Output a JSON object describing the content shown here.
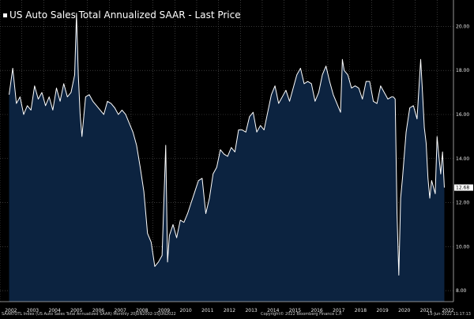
{
  "chart_data": {
    "type": "area",
    "title": "US Auto Sales Total Annualized SAAR - Last Price",
    "series": [
      {
        "name": "US Auto Sales Total Annualized SAAR - Last Price",
        "points": [
          [
            "2002-06",
            16.9
          ],
          [
            "2002-08",
            18.1
          ],
          [
            "2002-10",
            16.5
          ],
          [
            "2002-12",
            16.8
          ],
          [
            "2003-02",
            16.0
          ],
          [
            "2003-04",
            16.4
          ],
          [
            "2003-06",
            16.2
          ],
          [
            "2003-08",
            17.3
          ],
          [
            "2003-10",
            16.7
          ],
          [
            "2003-12",
            17.0
          ],
          [
            "2004-02",
            16.4
          ],
          [
            "2004-04",
            16.8
          ],
          [
            "2004-06",
            16.2
          ],
          [
            "2004-08",
            17.2
          ],
          [
            "2004-10",
            16.6
          ],
          [
            "2004-12",
            17.4
          ],
          [
            "2005-02",
            16.8
          ],
          [
            "2005-04",
            17.0
          ],
          [
            "2005-06",
            17.8
          ],
          [
            "2005-07",
            20.6
          ],
          [
            "2005-08",
            17.8
          ],
          [
            "2005-09",
            16.0
          ],
          [
            "2005-10",
            15.0
          ],
          [
            "2005-12",
            16.8
          ],
          [
            "2006-02",
            16.9
          ],
          [
            "2006-04",
            16.6
          ],
          [
            "2006-06",
            16.4
          ],
          [
            "2006-08",
            16.2
          ],
          [
            "2006-10",
            16.0
          ],
          [
            "2006-12",
            16.6
          ],
          [
            "2007-02",
            16.5
          ],
          [
            "2007-04",
            16.3
          ],
          [
            "2007-06",
            16.0
          ],
          [
            "2007-08",
            16.2
          ],
          [
            "2007-10",
            16.0
          ],
          [
            "2007-12",
            15.6
          ],
          [
            "2008-02",
            15.2
          ],
          [
            "2008-04",
            14.6
          ],
          [
            "2008-06",
            13.6
          ],
          [
            "2008-08",
            12.5
          ],
          [
            "2008-10",
            10.6
          ],
          [
            "2008-12",
            10.2
          ],
          [
            "2009-02",
            9.1
          ],
          [
            "2009-04",
            9.3
          ],
          [
            "2009-06",
            9.6
          ],
          [
            "2009-08",
            14.6
          ],
          [
            "2009-09",
            9.3
          ],
          [
            "2009-10",
            10.5
          ],
          [
            "2009-12",
            11.0
          ],
          [
            "2010-02",
            10.4
          ],
          [
            "2010-04",
            11.2
          ],
          [
            "2010-06",
            11.1
          ],
          [
            "2010-08",
            11.5
          ],
          [
            "2010-10",
            12.0
          ],
          [
            "2010-12",
            12.5
          ],
          [
            "2011-02",
            13.0
          ],
          [
            "2011-04",
            13.1
          ],
          [
            "2011-06",
            11.5
          ],
          [
            "2011-08",
            12.2
          ],
          [
            "2011-10",
            13.3
          ],
          [
            "2011-12",
            13.6
          ],
          [
            "2012-02",
            14.4
          ],
          [
            "2012-04",
            14.2
          ],
          [
            "2012-06",
            14.1
          ],
          [
            "2012-08",
            14.5
          ],
          [
            "2012-10",
            14.3
          ],
          [
            "2012-12",
            15.3
          ],
          [
            "2013-02",
            15.3
          ],
          [
            "2013-04",
            15.2
          ],
          [
            "2013-06",
            15.9
          ],
          [
            "2013-08",
            16.1
          ],
          [
            "2013-10",
            15.2
          ],
          [
            "2013-12",
            15.5
          ],
          [
            "2014-02",
            15.3
          ],
          [
            "2014-04",
            16.1
          ],
          [
            "2014-06",
            16.9
          ],
          [
            "2014-08",
            17.3
          ],
          [
            "2014-10",
            16.5
          ],
          [
            "2014-12",
            16.8
          ],
          [
            "2015-02",
            17.1
          ],
          [
            "2015-04",
            16.6
          ],
          [
            "2015-06",
            17.2
          ],
          [
            "2015-08",
            17.8
          ],
          [
            "2015-10",
            18.1
          ],
          [
            "2015-12",
            17.4
          ],
          [
            "2016-02",
            17.5
          ],
          [
            "2016-04",
            17.4
          ],
          [
            "2016-06",
            16.6
          ],
          [
            "2016-08",
            17.0
          ],
          [
            "2016-10",
            17.8
          ],
          [
            "2016-12",
            18.2
          ],
          [
            "2017-02",
            17.5
          ],
          [
            "2017-04",
            16.9
          ],
          [
            "2017-06",
            16.5
          ],
          [
            "2017-08",
            16.1
          ],
          [
            "2017-09",
            18.5
          ],
          [
            "2017-10",
            18.0
          ],
          [
            "2017-12",
            17.8
          ],
          [
            "2018-02",
            17.2
          ],
          [
            "2018-04",
            17.3
          ],
          [
            "2018-06",
            17.2
          ],
          [
            "2018-08",
            16.7
          ],
          [
            "2018-10",
            17.5
          ],
          [
            "2018-12",
            17.5
          ],
          [
            "2019-02",
            16.6
          ],
          [
            "2019-04",
            16.5
          ],
          [
            "2019-06",
            17.3
          ],
          [
            "2019-08",
            17.0
          ],
          [
            "2019-10",
            16.7
          ],
          [
            "2019-12",
            16.8
          ],
          [
            "2020-01",
            16.8
          ],
          [
            "2020-02",
            16.7
          ],
          [
            "2020-03",
            11.5
          ],
          [
            "2020-04",
            8.7
          ],
          [
            "2020-05",
            12.2
          ],
          [
            "2020-06",
            13.1
          ],
          [
            "2020-08",
            15.2
          ],
          [
            "2020-10",
            16.3
          ],
          [
            "2020-12",
            16.4
          ],
          [
            "2021-02",
            15.8
          ],
          [
            "2021-04",
            18.5
          ],
          [
            "2021-05",
            17.0
          ],
          [
            "2021-06",
            15.4
          ],
          [
            "2021-07",
            14.7
          ],
          [
            "2021-08",
            13.1
          ],
          [
            "2021-09",
            12.2
          ],
          [
            "2021-10",
            13.0
          ],
          [
            "2021-12",
            12.4
          ],
          [
            "2022-01",
            15.0
          ],
          [
            "2022-02",
            14.1
          ],
          [
            "2022-03",
            13.3
          ],
          [
            "2022-04",
            14.3
          ],
          [
            "2022-05",
            12.68
          ]
        ]
      }
    ],
    "last_value": "12.68",
    "y_ticks": [
      "8.00",
      "10.00",
      "12.00",
      "14.00",
      "16.00",
      "18.00",
      "20.00"
    ],
    "x_ticks": [
      "2002",
      "2003",
      "2004",
      "2005",
      "2006",
      "2007",
      "2008",
      "2009",
      "2010",
      "2011",
      "2012",
      "2013",
      "2014",
      "2015",
      "2016",
      "2017",
      "2018",
      "2019",
      "2020",
      "2021",
      "2022"
    ],
    "ylim": [
      7.5,
      21.2
    ],
    "xlim": [
      "2002-01",
      "2022-10"
    ],
    "grid": true,
    "y_axis_side": "right",
    "colors": {
      "line": "#ffffff",
      "fill": "#0c2340",
      "grid": "#5a5a5a",
      "background": "#000000"
    }
  },
  "footer": {
    "left": "SAARTOTL Index (US Auto Sales Total Annualized SAAR)  Monthly 20JUN2002-15JUN2022",
    "center": "Copyright© 2022 Bloomberg Finance L.P.",
    "right": "15-Jun-2022 11:17:13"
  }
}
